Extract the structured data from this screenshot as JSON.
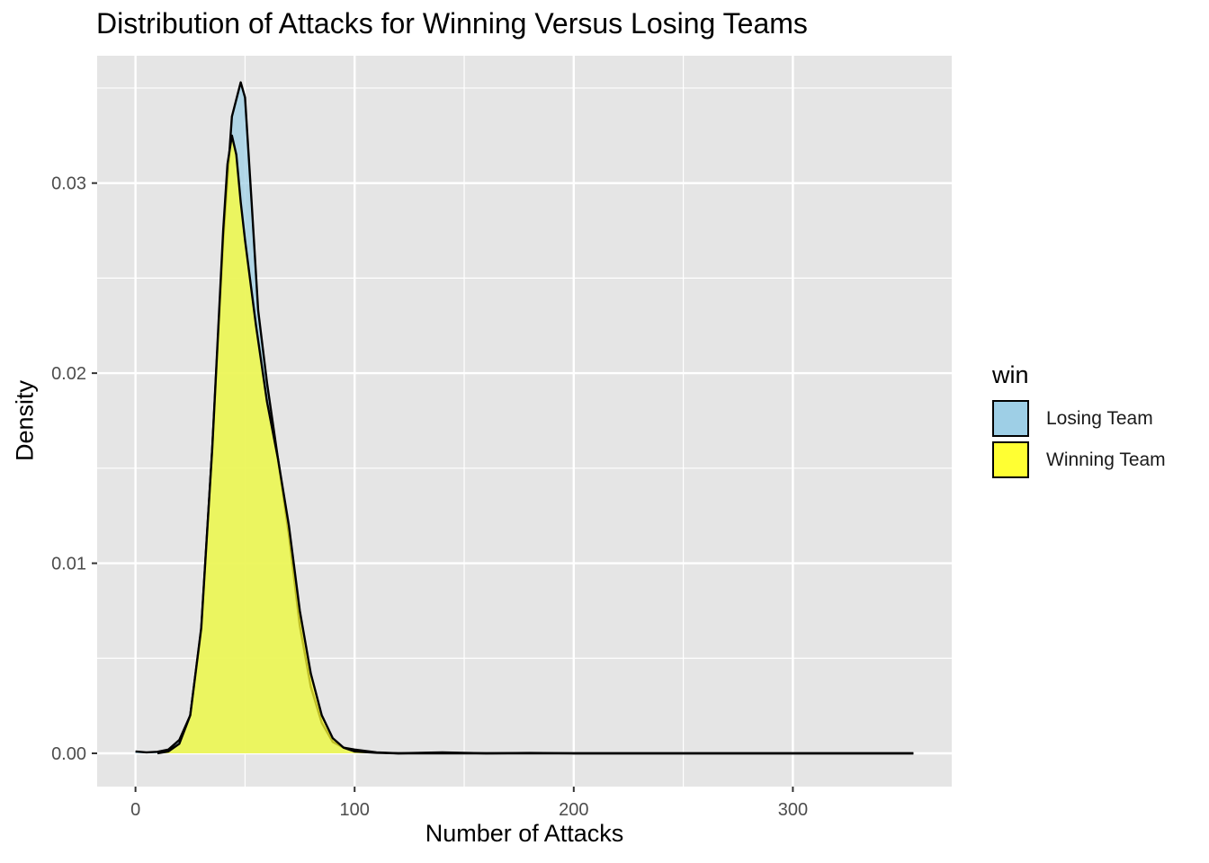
{
  "chart_data": {
    "type": "area",
    "title": "Distribution of Attacks for Winning Versus Losing Teams",
    "xlabel": "Number of Attacks",
    "ylabel": "Density",
    "xlim": [
      -17.5,
      372.5
    ],
    "ylim": [
      -0.00175,
      0.0367
    ],
    "x_ticks": [
      0,
      100,
      200,
      300
    ],
    "x_tick_labels": [
      "0",
      "100",
      "200",
      "300"
    ],
    "y_ticks": [
      0.0,
      0.01,
      0.02,
      0.03
    ],
    "y_tick_labels": [
      "0.00",
      "0.01",
      "0.02",
      "0.03"
    ],
    "grid": true,
    "legend": {
      "title": "win",
      "position": "right"
    },
    "series": [
      {
        "name": "Losing Team",
        "color": "#9ecfe6",
        "x": [
          0,
          5,
          10,
          15,
          20,
          25,
          30,
          35,
          40,
          44,
          48,
          50,
          53,
          56,
          60,
          65,
          70,
          75,
          80,
          85,
          90,
          95,
          100,
          110,
          120,
          140,
          160,
          180,
          200,
          250,
          300,
          355
        ],
        "y": [
          0.0001,
          5e-05,
          8e-05,
          0.0002,
          0.0007,
          0.002,
          0.0065,
          0.016,
          0.027,
          0.0335,
          0.0353,
          0.0345,
          0.029,
          0.0233,
          0.0195,
          0.0155,
          0.0115,
          0.0067,
          0.0035,
          0.0016,
          0.0006,
          0.0003,
          0.0002,
          5e-05,
          0.0,
          5e-05,
          0.0,
          2e-05,
          0.0,
          0.0,
          0.0,
          0.0
        ]
      },
      {
        "name": "Winning Team",
        "color": "#ffff33",
        "x": [
          10,
          15,
          20,
          25,
          30,
          35,
          40,
          42,
          44,
          46,
          48,
          50,
          55,
          60,
          65,
          70,
          75,
          80,
          85,
          90,
          95,
          100,
          110,
          120,
          150,
          200,
          250,
          300,
          355
        ],
        "y": [
          0.0,
          0.0001,
          0.0005,
          0.002,
          0.0066,
          0.016,
          0.0275,
          0.031,
          0.0325,
          0.0315,
          0.029,
          0.027,
          0.0225,
          0.0185,
          0.0155,
          0.012,
          0.0075,
          0.0042,
          0.002,
          0.0008,
          0.0003,
          0.0001,
          3e-05,
          0.0,
          0.0,
          0.0,
          0.0,
          0.0,
          0.0
        ]
      }
    ]
  }
}
